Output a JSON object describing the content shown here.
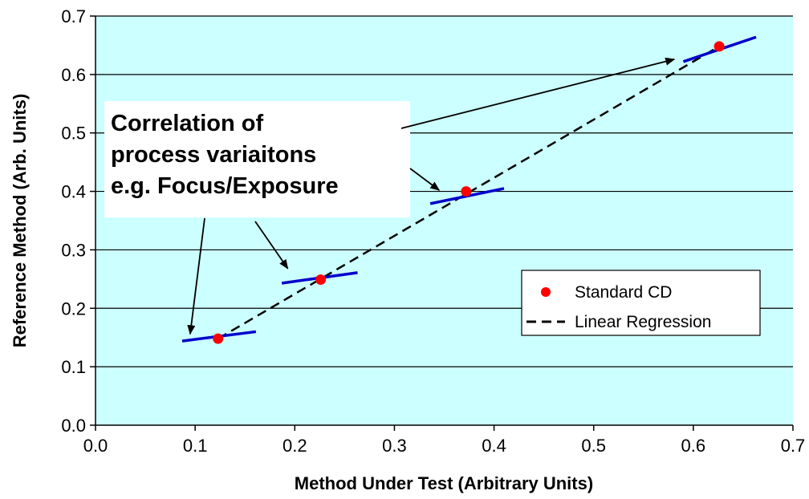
{
  "chart_data": {
    "type": "scatter",
    "xlabel": "Method Under Test (Arbitrary Units)",
    "ylabel": "Reference Method (Arb. Units)",
    "xlim": [
      0.0,
      0.7
    ],
    "ylim": [
      0.0,
      0.7
    ],
    "xticks": [
      "0.0",
      "0.1",
      "0.2",
      "0.3",
      "0.4",
      "0.5",
      "0.6",
      "0.7"
    ],
    "yticks": [
      "0.0",
      "0.1",
      "0.2",
      "0.3",
      "0.4",
      "0.5",
      "0.6",
      "0.7"
    ],
    "grid": "horizontal",
    "plot_background": "#ccffff",
    "series": [
      {
        "name": "Standard CD",
        "kind": "points",
        "color": "#ff0000",
        "x": [
          0.123,
          0.226,
          0.372,
          0.626
        ],
        "y": [
          0.148,
          0.249,
          0.4,
          0.648
        ]
      },
      {
        "name": "Linear Regression",
        "kind": "dashed-line",
        "color": "#000000",
        "x": [
          0.123,
          0.626
        ],
        "y": [
          0.148,
          0.648
        ]
      }
    ],
    "local_fit_segments": {
      "color": "#0000cc",
      "segments": [
        {
          "x": [
            0.087,
            0.161
          ],
          "y": [
            0.144,
            0.16
          ]
        },
        {
          "x": [
            0.187,
            0.263
          ],
          "y": [
            0.243,
            0.261
          ]
        },
        {
          "x": [
            0.336,
            0.41
          ],
          "y": [
            0.379,
            0.405
          ]
        },
        {
          "x": [
            0.59,
            0.663
          ],
          "y": [
            0.622,
            0.664
          ]
        }
      ]
    },
    "legend": {
      "placement": "lower-right",
      "entries": [
        "Standard CD",
        "Linear Regression"
      ]
    },
    "annotation": {
      "lines": [
        "Correlation of",
        "process variaitons",
        "e.g. Focus/Exposure"
      ],
      "arrow_targets": [
        {
          "x": 0.095,
          "y": 0.156
        },
        {
          "x": 0.193,
          "y": 0.268
        },
        {
          "x": 0.345,
          "y": 0.402
        },
        {
          "x": 0.581,
          "y": 0.626
        }
      ]
    }
  }
}
